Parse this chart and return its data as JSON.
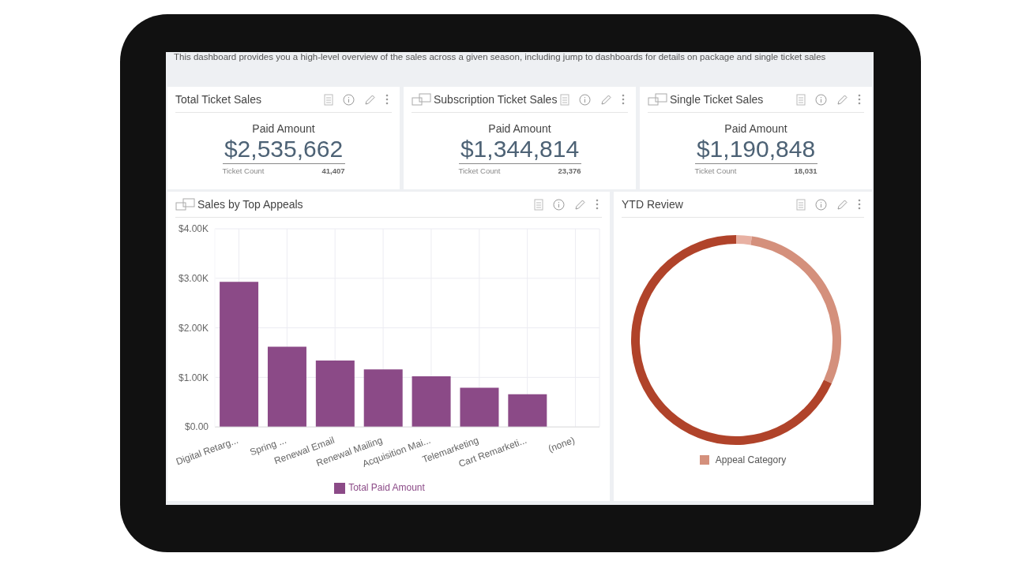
{
  "chart_data": [
    {
      "type": "other",
      "annotations": [
        "This dashboard provides you a high-level overview of the sales across a given season, including jump to dashboards for details on package and single ticket sales"
      ]
    },
    {
      "type": "other",
      "title": "Total Ticket Sales",
      "subtitle": "Paid Amount",
      "annotations": [
        "$2,535,662",
        "Ticket Count",
        "41,407"
      ]
    },
    {
      "type": "other",
      "title": "Subscription Ticket Sales",
      "subtitle": "Paid Amount",
      "annotations": [
        "$1,344,814",
        "Ticket Count",
        "23,376"
      ]
    },
    {
      "type": "other",
      "title": "Single Ticket Sales",
      "subtitle": "Paid Amount",
      "annotations": [
        "$1,190,848",
        "Ticket Count",
        "18,031"
      ]
    },
    {
      "type": "bar",
      "title": "Sales by Top Appeals",
      "categories": [
        "Digital Retarg...",
        "Spring ...",
        "Renewal Email",
        "Renewal Mailing",
        "Acquisition Mai...",
        "Telemarketing",
        "Cart Remarketi...",
        "(none)"
      ],
      "series": [
        {
          "name": "Total Paid Amount",
          "color": "#8b4a87",
          "values": [
            2.93,
            1.62,
            1.34,
            1.16,
            1.02,
            0.79,
            0.66,
            0
          ]
        }
      ],
      "ylim": [
        0,
        4
      ],
      "yticks": [
        {
          "value": 0,
          "label": "$0.00"
        },
        {
          "value": 1,
          "label": "$1.00K"
        },
        {
          "value": 2,
          "label": "$2.00K"
        },
        {
          "value": 3,
          "label": "$3.00K"
        },
        {
          "value": 4,
          "label": "$4.00K"
        }
      ],
      "grid": true,
      "legend": "bottom"
    },
    {
      "type": "donut",
      "title": "YTD Review",
      "categories": [
        null,
        null,
        null
      ],
      "values": [
        2.4,
        29.4,
        68.2
      ],
      "colors": [
        "#e8b1a3",
        "#d4907c",
        "#b0432a"
      ],
      "legend_title": "Appeal Category"
    }
  ]
}
